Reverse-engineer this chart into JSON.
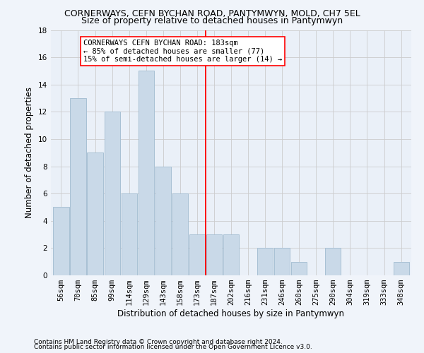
{
  "title": "CORNERWAYS, CEFN BYCHAN ROAD, PANTYMWYN, MOLD, CH7 5EL",
  "subtitle": "Size of property relative to detached houses in Pantymwyn",
  "xlabel": "Distribution of detached houses by size in Pantymwyn",
  "ylabel": "Number of detached properties",
  "bin_labels": [
    "56sqm",
    "70sqm",
    "85sqm",
    "99sqm",
    "114sqm",
    "129sqm",
    "143sqm",
    "158sqm",
    "173sqm",
    "187sqm",
    "202sqm",
    "216sqm",
    "231sqm",
    "246sqm",
    "260sqm",
    "275sqm",
    "290sqm",
    "304sqm",
    "319sqm",
    "333sqm",
    "348sqm"
  ],
  "bin_values": [
    5,
    13,
    9,
    12,
    6,
    15,
    8,
    6,
    3,
    3,
    3,
    0,
    2,
    2,
    1,
    0,
    2,
    0,
    0,
    0,
    1
  ],
  "bar_color": "#c9d9e8",
  "bar_edgecolor": "#a8c0d4",
  "grid_color": "#cccccc",
  "bg_color": "#eaf0f8",
  "fig_color": "#f0f4fa",
  "red_line_x": 8.5,
  "annotation_text": "CORNERWAYS CEFN BYCHAN ROAD: 183sqm\n← 85% of detached houses are smaller (77)\n15% of semi-detached houses are larger (14) →",
  "ylim": [
    0,
    18
  ],
  "yticks": [
    0,
    2,
    4,
    6,
    8,
    10,
    12,
    14,
    16,
    18
  ],
  "footnote1": "Contains HM Land Registry data © Crown copyright and database right 2024.",
  "footnote2": "Contains public sector information licensed under the Open Government Licence v3.0.",
  "title_fontsize": 9,
  "subtitle_fontsize": 9,
  "xlabel_fontsize": 8.5,
  "ylabel_fontsize": 8.5,
  "tick_fontsize": 7.5,
  "annot_fontsize": 7.5,
  "footnote_fontsize": 6.5
}
